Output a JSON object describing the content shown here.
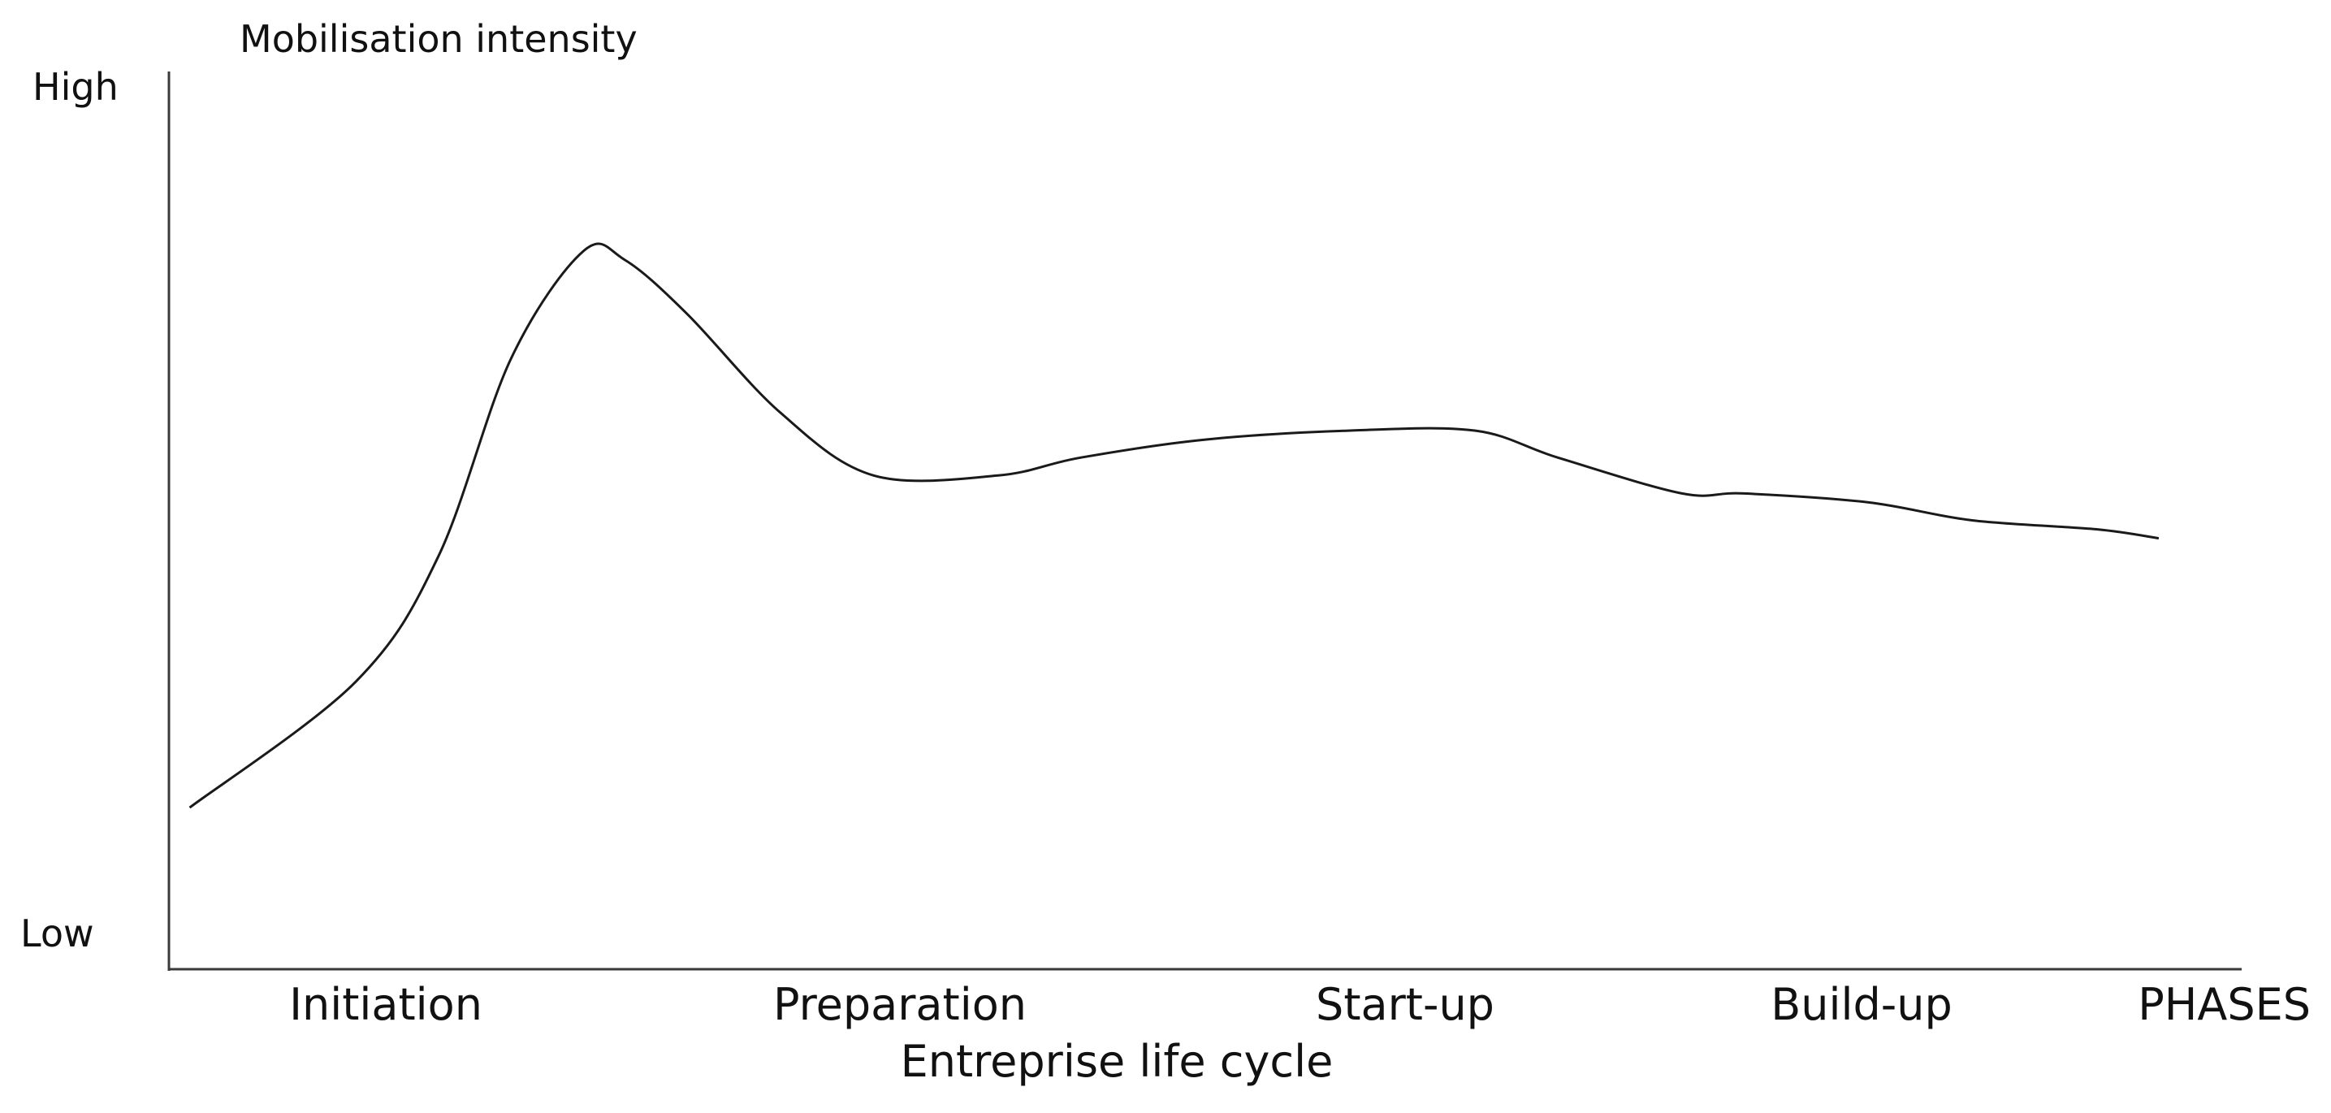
{
  "chart_data": {
    "type": "line",
    "ylabel": "Mobilisation intensity",
    "y_high_label": "High",
    "y_low_label": "Low",
    "xlabel": "Entreprise life cycle",
    "phases_label": "PHASES",
    "categories": [
      "Initiation",
      "Preparation",
      "Start-up",
      "Build-up"
    ],
    "ylim": [
      0,
      1
    ],
    "xlim": [
      0,
      1
    ],
    "grid": false,
    "legend": "none",
    "line_color": "#1a1a1a",
    "series": [
      {
        "x": [
          0.01,
          0.09,
          0.13,
          0.165,
          0.2,
          0.22,
          0.25,
          0.295,
          0.34,
          0.4,
          0.44,
          0.5,
          0.57,
          0.63,
          0.67,
          0.73,
          0.76,
          0.82,
          0.87,
          0.93,
          0.96
        ],
        "values": [
          0.18,
          0.32,
          0.46,
          0.68,
          0.8,
          0.79,
          0.73,
          0.62,
          0.55,
          0.55,
          0.57,
          0.59,
          0.6,
          0.6,
          0.57,
          0.53,
          0.53,
          0.52,
          0.5,
          0.49,
          0.48
        ]
      }
    ]
  }
}
